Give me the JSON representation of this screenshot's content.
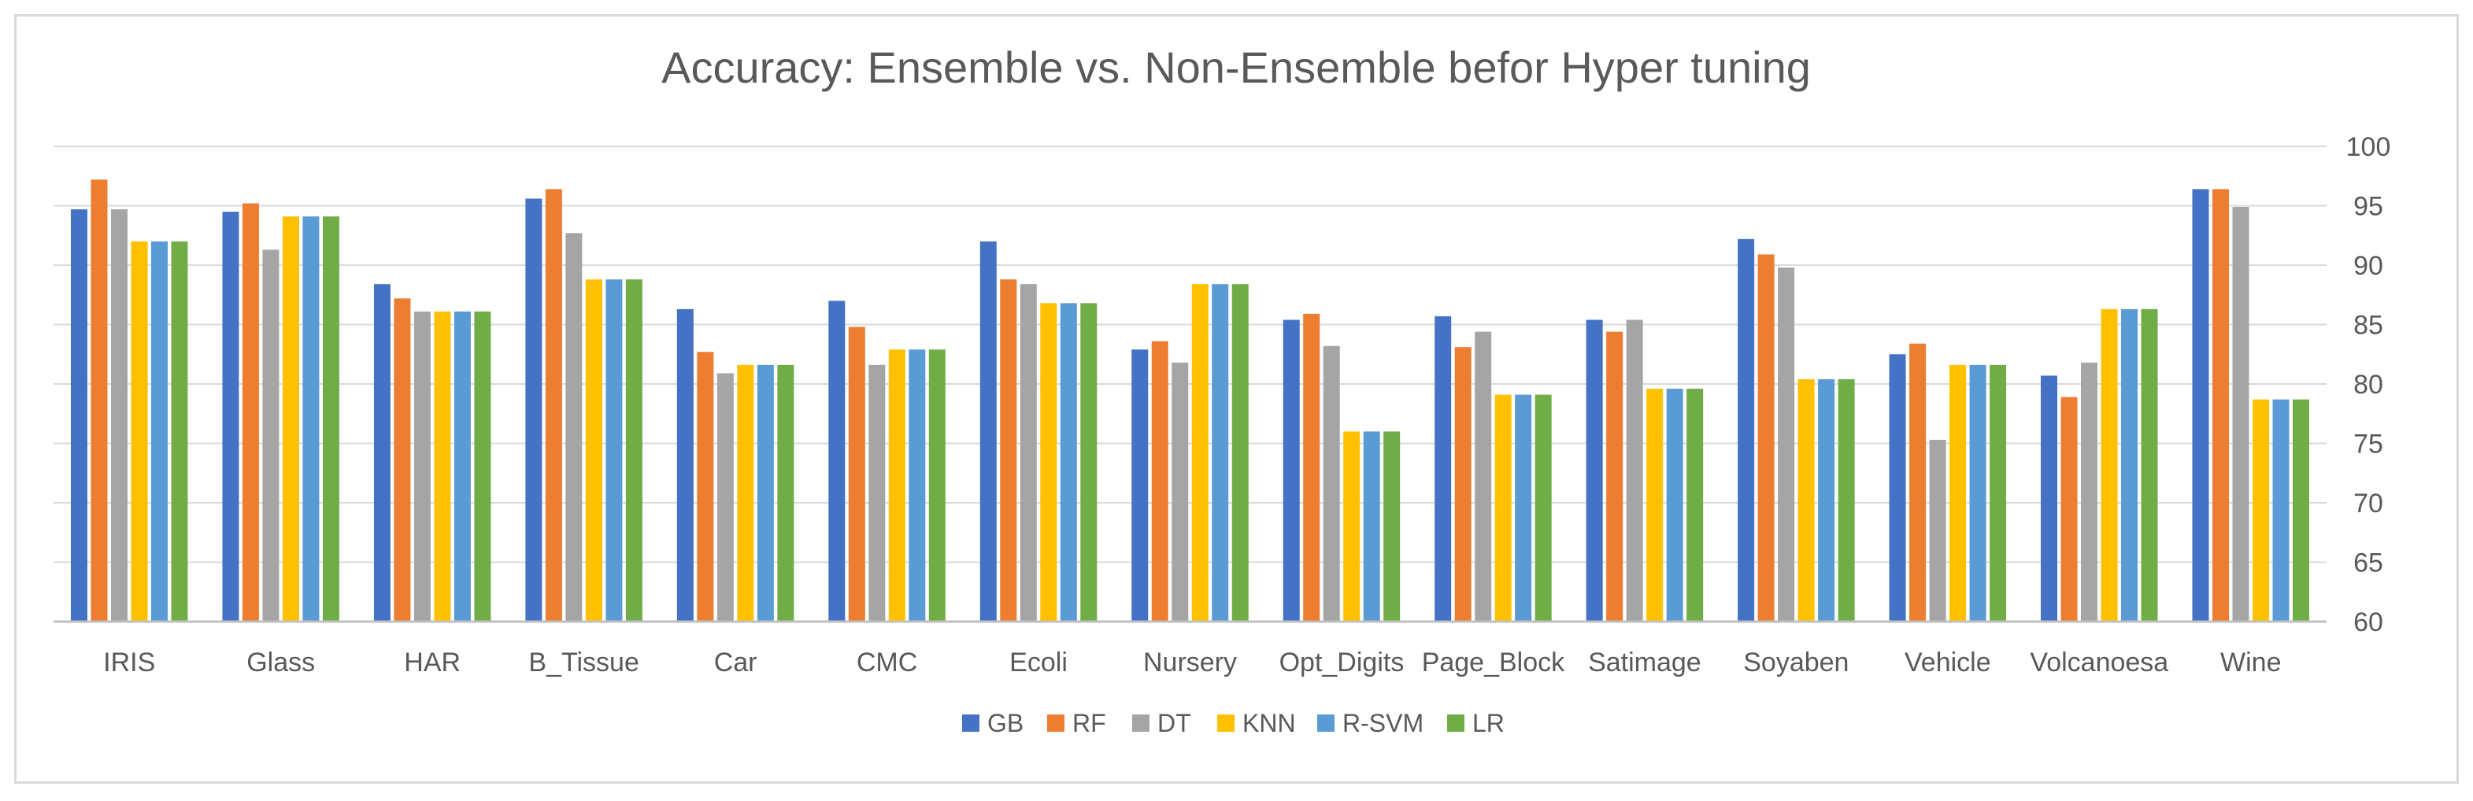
{
  "chart_data": {
    "type": "bar",
    "title": "Accuracy: Ensemble vs. Non-Ensemble befor Hyper tuning",
    "xlabel": "",
    "ylabel": "",
    "ylim": [
      60,
      100
    ],
    "yticks": [
      "60",
      "65",
      "70",
      "75",
      "80",
      "85",
      "90",
      "95",
      "100"
    ],
    "y_axis_side": "right",
    "grid": true,
    "legend_position": "bottom",
    "categories": [
      "IRIS",
      "Glass",
      "HAR",
      "B_Tissue",
      "Car",
      "CMC",
      "Ecoli",
      "Nursery",
      "Opt_Digits",
      "Page_Block",
      "Satimage",
      "Soyaben",
      "Vehicle",
      "Volcanoesa",
      "Wine"
    ],
    "series": [
      {
        "name": "GB",
        "color": "#4472c4",
        "values": [
          94.7,
          94.5,
          88.4,
          95.6,
          86.3,
          87.0,
          92.0,
          82.9,
          85.4,
          85.7,
          85.4,
          92.2,
          82.5,
          80.7,
          96.4
        ]
      },
      {
        "name": "RF",
        "color": "#ed7d31",
        "values": [
          97.2,
          95.2,
          87.2,
          96.4,
          82.7,
          84.8,
          88.8,
          83.6,
          85.9,
          83.1,
          84.4,
          90.9,
          83.4,
          78.9,
          96.4
        ]
      },
      {
        "name": "DT",
        "color": "#a5a5a5",
        "values": [
          94.7,
          91.3,
          86.1,
          92.7,
          80.9,
          81.6,
          88.4,
          81.8,
          83.2,
          84.4,
          85.4,
          89.8,
          75.3,
          81.8,
          94.9
        ]
      },
      {
        "name": "KNN",
        "color": "#ffc000",
        "values": [
          92.0,
          94.1,
          86.1,
          88.8,
          81.6,
          82.9,
          86.8,
          88.4,
          76.0,
          79.1,
          79.6,
          80.4,
          81.6,
          86.3,
          78.7
        ]
      },
      {
        "name": "R-SVM",
        "color": "#5b9bd5",
        "values": [
          92.0,
          94.1,
          86.1,
          88.8,
          81.6,
          82.9,
          86.8,
          88.4,
          76.0,
          79.1,
          79.6,
          80.4,
          81.6,
          86.3,
          78.7
        ]
      },
      {
        "name": "LR",
        "color": "#70ad47",
        "values": [
          92.0,
          94.1,
          86.1,
          88.8,
          81.6,
          82.9,
          86.8,
          88.4,
          76.0,
          79.1,
          79.6,
          80.4,
          81.6,
          86.3,
          78.7
        ]
      }
    ]
  },
  "colors": {
    "gridline": "#d9d9d9",
    "axis": "#bfbfbf",
    "text": "#595959"
  }
}
